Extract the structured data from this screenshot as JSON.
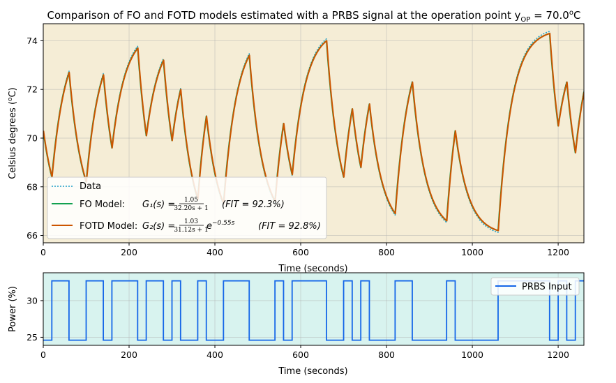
{
  "chart_data": [
    {
      "type": "line",
      "title": "Comparison of FO and FOTD models estimated with a PRBS signal at the operation point y",
      "title_sub": "OP",
      "title_tail": " = 70.0",
      "title_sup": "o",
      "title_end": "C",
      "xlabel": "Time (seconds)",
      "ylabel": "Celsius degrees (",
      "ylabel_unit_sup": "o",
      "ylabel_unit": "C)",
      "xlim": [
        0,
        1260
      ],
      "ylim": [
        65.7,
        74.7
      ],
      "x_ticks": [
        "0",
        "200",
        "400",
        "600",
        "800",
        "1000",
        "1200"
      ],
      "y_ticks": [
        "66",
        "68",
        "70",
        "72",
        "74"
      ],
      "x_tick_values": [
        0,
        200,
        400,
        600,
        800,
        1000,
        1200
      ],
      "y_tick_values": [
        66,
        68,
        70,
        72,
        74
      ],
      "grid": true,
      "legend_placement": "lower-left",
      "background": "#f5edd6",
      "knots": [
        [
          0,
          70.3
        ],
        [
          20,
          68.4
        ],
        [
          60,
          72.7
        ],
        [
          100,
          68.2
        ],
        [
          140,
          72.6
        ],
        [
          160,
          69.6
        ],
        [
          220,
          73.7
        ],
        [
          240,
          70.1
        ],
        [
          280,
          73.2
        ],
        [
          300,
          69.9
        ],
        [
          320,
          72.0
        ],
        [
          360,
          67.5
        ],
        [
          380,
          70.9
        ],
        [
          420,
          67.3
        ],
        [
          480,
          73.4
        ],
        [
          540,
          67.4
        ],
        [
          560,
          70.6
        ],
        [
          580,
          68.5
        ],
        [
          660,
          74.0
        ],
        [
          700,
          68.4
        ],
        [
          720,
          71.2
        ],
        [
          740,
          68.8
        ],
        [
          760,
          71.4
        ],
        [
          820,
          66.9
        ],
        [
          860,
          72.3
        ],
        [
          940,
          66.6
        ],
        [
          960,
          70.3
        ],
        [
          1060,
          66.2
        ],
        [
          1180,
          74.3
        ],
        [
          1200,
          70.5
        ],
        [
          1220,
          72.3
        ],
        [
          1240,
          69.4
        ],
        [
          1260,
          71.9
        ]
      ],
      "series": [
        {
          "name": "Data",
          "color": "#1f9fc8",
          "style": "dotted"
        },
        {
          "name": "FO Model:",
          "color": "#12a150",
          "style": "solid"
        },
        {
          "name": "FOTD Model:",
          "color": "#cc5500",
          "style": "solid"
        }
      ],
      "legend": {
        "data_label": "Data",
        "fo_label": "FO Model:",
        "fo_eq_lhs": "G₁(s) =",
        "fo_num": "1.05",
        "fo_den": "32.20s + 1",
        "fo_fit": "(FIT = 92.3%)",
        "fotd_label": "FOTD Model:",
        "fotd_eq_lhs": "G₂(s) =",
        "fotd_num": "1.03",
        "fotd_den": "31.12s + 1",
        "fotd_exp": "e",
        "fotd_exp_sup": "−0.55s",
        "fotd_fit": "(FIT = 92.8%)"
      }
    },
    {
      "type": "line",
      "xlabel": "Time (seconds)",
      "ylabel": "Power (%)",
      "xlim": [
        0,
        1260
      ],
      "ylim": [
        23.9,
        33.8
      ],
      "x_ticks": [
        "0",
        "200",
        "400",
        "600",
        "800",
        "1000",
        "1200"
      ],
      "y_ticks": [
        "25",
        "30"
      ],
      "x_tick_values": [
        0,
        200,
        400,
        600,
        800,
        1000,
        1200
      ],
      "y_tick_values": [
        25,
        30
      ],
      "grid": true,
      "legend_placement": "upper-right",
      "background": "#d8f3ef",
      "low": 24.6,
      "high": 32.7,
      "transitions": [
        [
          0,
          "L"
        ],
        [
          20,
          "H"
        ],
        [
          60,
          "L"
        ],
        [
          100,
          "H"
        ],
        [
          140,
          "L"
        ],
        [
          160,
          "H"
        ],
        [
          220,
          "L"
        ],
        [
          240,
          "H"
        ],
        [
          280,
          "L"
        ],
        [
          300,
          "H"
        ],
        [
          320,
          "L"
        ],
        [
          360,
          "H"
        ],
        [
          380,
          "L"
        ],
        [
          420,
          "H"
        ],
        [
          480,
          "L"
        ],
        [
          540,
          "H"
        ],
        [
          560,
          "L"
        ],
        [
          580,
          "H"
        ],
        [
          660,
          "L"
        ],
        [
          700,
          "H"
        ],
        [
          720,
          "L"
        ],
        [
          740,
          "H"
        ],
        [
          760,
          "L"
        ],
        [
          820,
          "H"
        ],
        [
          860,
          "L"
        ],
        [
          940,
          "H"
        ],
        [
          960,
          "L"
        ],
        [
          1060,
          "H"
        ],
        [
          1180,
          "L"
        ],
        [
          1200,
          "H"
        ],
        [
          1220,
          "L"
        ],
        [
          1240,
          "H"
        ],
        [
          1260,
          "H"
        ]
      ],
      "series": [
        {
          "name": "PRBS Input",
          "color": "#1466e8",
          "style": "solid"
        }
      ]
    }
  ]
}
